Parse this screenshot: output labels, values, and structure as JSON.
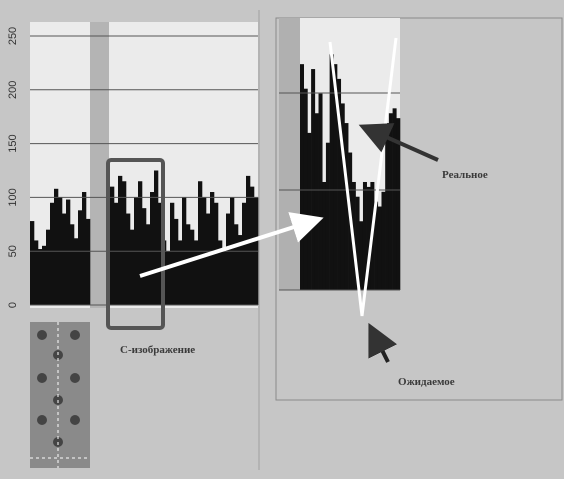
{
  "chart_data": [
    {
      "type": "bar",
      "ylim": [
        0,
        263
      ],
      "yticks": [
        0,
        50,
        100,
        150,
        200,
        250
      ],
      "grid": true,
      "color": "#111111",
      "values": [
        78,
        60,
        52,
        55,
        70,
        95,
        108,
        100,
        85,
        98,
        75,
        62,
        88,
        105,
        80,
        null,
        null,
        null,
        null,
        null,
        110,
        95,
        120,
        115,
        85,
        70,
        100,
        115,
        90,
        75,
        105,
        125,
        95,
        60,
        50,
        95,
        80,
        60,
        100,
        75,
        70,
        60,
        115,
        100,
        85,
        105,
        95,
        60,
        50,
        85,
        100,
        75,
        65,
        95,
        120,
        110,
        100
      ]
    },
    {
      "type": "bar",
      "ylim": [
        0,
        277
      ],
      "color": "#111111",
      "values": [
        230,
        205,
        160,
        225,
        180,
        200,
        110,
        150,
        240,
        230,
        215,
        190,
        170,
        140,
        110,
        95,
        70,
        110,
        105,
        110,
        90,
        85,
        100,
        170,
        180,
        185,
        175
      ]
    }
  ],
  "annotations": {
    "real": "Реальное",
    "expected": "Ожидаемое",
    "c_image": "С-изображение"
  }
}
